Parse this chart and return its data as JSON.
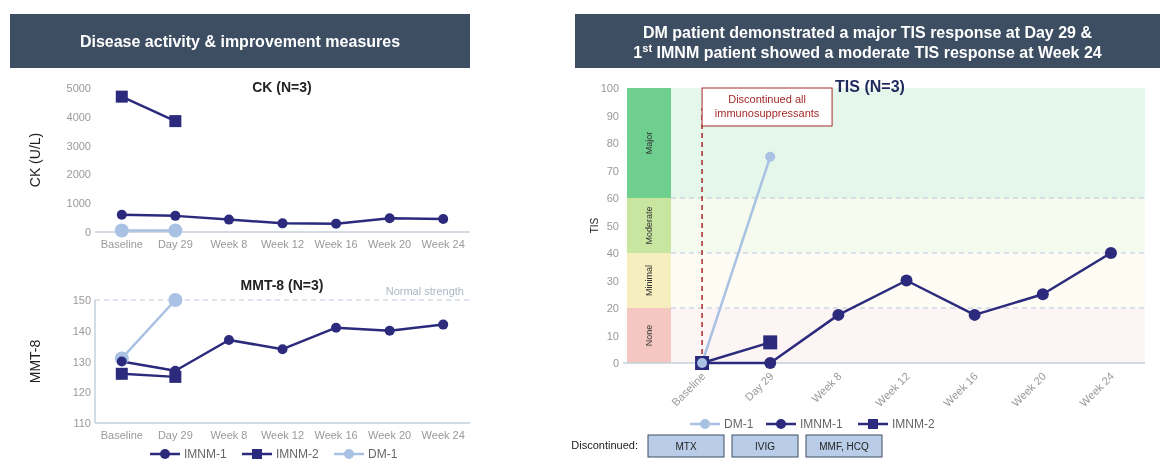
{
  "chart_data": [
    {
      "type": "line",
      "title": "CK (N=3)",
      "ylabel": "CK (U/L)",
      "annotations": [
        "Disease activity & improvement measures"
      ],
      "categories": [
        "Baseline",
        "Day 29",
        "Week 8",
        "Week 12",
        "Week 16",
        "Week 20",
        "Week 24"
      ],
      "ylim": [
        0,
        5000
      ],
      "yticks": [
        0,
        1000,
        2000,
        3000,
        4000,
        5000
      ],
      "legend": false,
      "series": [
        {
          "color": "#2b2a7c",
          "marker": "circle",
          "values": [
            600,
            560,
            430,
            300,
            290,
            480,
            450
          ]
        },
        {
          "color": "#2b2a7c",
          "marker": "square",
          "values": [
            4700,
            3850,
            null,
            null,
            null,
            null,
            null
          ]
        },
        {
          "color": "#a9c1e3",
          "marker": "circle",
          "values": [
            50,
            50,
            null,
            null,
            null,
            null,
            null
          ]
        }
      ]
    },
    {
      "type": "line",
      "title": "MMT-8 (N=3)",
      "ylabel": "MMT-8",
      "categories": [
        "Baseline",
        "Day 29",
        "Week 8",
        "Week 12",
        "Week 16",
        "Week 20",
        "Week 24"
      ],
      "ylim": [
        110,
        150
      ],
      "yticks": [
        110,
        120,
        130,
        140,
        150
      ],
      "legend": "bottom",
      "ref_lines": [
        {
          "axis": "y",
          "value": 150,
          "label": "Normal strength",
          "color": "#b8c8dc",
          "line_style": "dashed"
        }
      ],
      "series": [
        {
          "name": "IMNM-1",
          "color": "#2b2a7c",
          "marker": "circle",
          "values": [
            130,
            127,
            137,
            134,
            141,
            140,
            142
          ]
        },
        {
          "name": "IMNM-2",
          "color": "#2b2a7c",
          "marker": "square",
          "values": [
            126,
            125,
            null,
            null,
            null,
            null,
            null
          ]
        },
        {
          "name": "DM-1",
          "color": "#a9c1e3",
          "marker": "circle",
          "values": [
            131,
            150,
            null,
            null,
            null,
            null,
            null
          ]
        }
      ]
    },
    {
      "type": "line",
      "title": "TIS (N=3)",
      "ylabel": "TIS",
      "annotations": [
        "DM patient demonstrated a major TIS response at Day 29 & 1$^{st}$ IMNM patient showed a moderate TIS response at Week 24",
        "Discontinued:",
        "MTX",
        "IVIG",
        "MMF, HCQ"
      ],
      "categories": [
        "Baseline",
        "Day 29",
        "Week 8",
        "Week 12",
        "Week 16",
        "Week 20",
        "Week 24"
      ],
      "ylim": [
        0,
        100
      ],
      "yticks": [
        0,
        10,
        20,
        30,
        40,
        50,
        60,
        70,
        80,
        90,
        100
      ],
      "legend": "bottom",
      "bands": [
        {
          "axis": "y",
          "from": 0,
          "to": 20,
          "label": "None",
          "color": "#f4c7c3"
        },
        {
          "axis": "y",
          "from": 20,
          "to": 40,
          "label": "Minimal",
          "color": "#f7eec0"
        },
        {
          "axis": "y",
          "from": 40,
          "to": 60,
          "label": "Moderate",
          "color": "#c9e6a0"
        },
        {
          "axis": "y",
          "from": 60,
          "to": 100,
          "label": "Major",
          "color": "#6fcf8f"
        }
      ],
      "ref_lines": [
        {
          "axis": "y",
          "value": 20,
          "color": "#b8c8dc",
          "line_style": "dashed"
        },
        {
          "axis": "y",
          "value": 40,
          "color": "#b8c8dc",
          "line_style": "dashed"
        },
        {
          "axis": "y",
          "value": 60,
          "color": "#b8c8dc",
          "line_style": "dashed"
        },
        {
          "axis": "x",
          "value": "Baseline",
          "label": "Discontinued all immunosuppressants",
          "color": "#a52a2a",
          "line_style": "dashed"
        }
      ],
      "series": [
        {
          "name": "DM-1",
          "color": "#a9c1e3",
          "marker": "circle",
          "values": [
            0,
            75,
            null,
            null,
            null,
            null,
            null
          ]
        },
        {
          "name": "IMNM-1",
          "color": "#2b2a7c",
          "marker": "circle",
          "values": [
            0,
            0,
            17.5,
            30,
            17.5,
            25,
            40
          ]
        },
        {
          "name": "IMNM-2",
          "color": "#2b2a7c",
          "marker": "square",
          "values": [
            0,
            7.5,
            null,
            null,
            null,
            null,
            null
          ]
        }
      ]
    }
  ]
}
